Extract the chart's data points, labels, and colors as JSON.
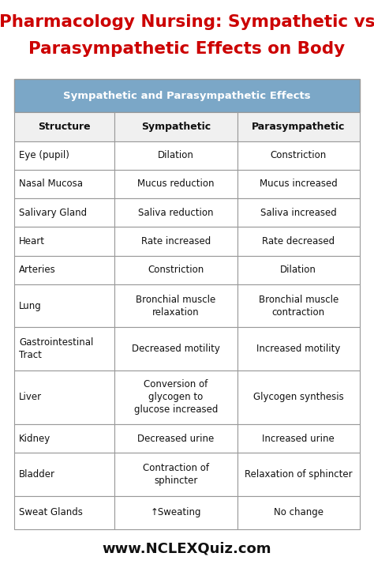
{
  "title_line1": "Pharmacology Nursing: Sympathetic vs",
  "title_line2": "Parasympathetic Effects on Body",
  "title_color": "#cc0000",
  "title_fontsize": 15.5,
  "header_title": "Sympathetic and Parasympathetic Effects",
  "header_bg": "#7ba7c7",
  "header_text_color": "#ffffff",
  "header_fontsize": 9.5,
  "col_headers": [
    "Structure",
    "Sympathetic",
    "Parasympathetic"
  ],
  "col_header_fontsize": 9.0,
  "rows": [
    [
      "Eye (pupil)",
      "Dilation",
      "Constriction"
    ],
    [
      "Nasal Mucosa",
      "Mucus reduction",
      "Mucus increased"
    ],
    [
      "Salivary Gland",
      "Saliva reduction",
      "Saliva increased"
    ],
    [
      "Heart",
      "Rate increased",
      "Rate decreased"
    ],
    [
      "Arteries",
      "Constriction",
      "Dilation"
    ],
    [
      "Lung",
      "Bronchial muscle\nrelaxation",
      "Bronchial muscle\ncontraction"
    ],
    [
      "Gastrointestinal\nTract",
      "Decreased motility",
      "Increased motility"
    ],
    [
      "Liver",
      "Conversion of\nglycogen to\nglucose increased",
      "Glycogen synthesis"
    ],
    [
      "Kidney",
      "Decreased urine",
      "Increased urine"
    ],
    [
      "Bladder",
      "Contraction of\nsphincter",
      "Relaxation of sphincter"
    ],
    [
      "Sweat Glands",
      "↑Sweating",
      "No change"
    ]
  ],
  "cell_fontsize": 8.5,
  "grid_color": "#999999",
  "footer": "www.NCLEXQuiz.com",
  "footer_fontsize": 13,
  "bg_color": "#ffffff",
  "row_rel_heights": [
    1.05,
    0.9,
    0.9,
    0.9,
    0.9,
    0.9,
    0.9,
    1.35,
    1.35,
    1.7,
    0.9,
    1.35,
    1.05
  ]
}
